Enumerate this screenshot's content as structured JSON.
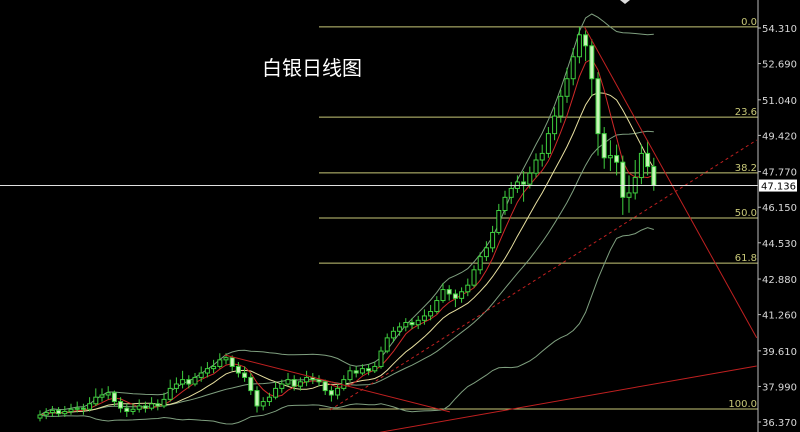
{
  "chart_data": {
    "type": "candlestick",
    "title": "白银日线图",
    "ylim": [
      36.37,
      54.31
    ],
    "y_ticks": [
      "54.310",
      "52.690",
      "51.040",
      "49.420",
      "47.770",
      "46.150",
      "44.530",
      "42.880",
      "41.260",
      "39.610",
      "37.990",
      "36.370"
    ],
    "current_price": "47.136",
    "grid": false,
    "colors": {
      "background": "#000000",
      "up": "#3fcf3f",
      "down_fill": "#c8f5b8",
      "ma_fast": "#d02828",
      "ma_mid": "#e8e0a0",
      "band": "#7f9f7f",
      "fib": "#c8c878",
      "trend": "#c02020",
      "price_line": "#e0e0e0"
    },
    "indicators": [
      "MA5",
      "Bollinger(20)"
    ],
    "ohlc": [
      [
        36.55,
        36.9,
        36.4,
        36.69
      ],
      [
        36.69,
        37.0,
        36.5,
        36.8
      ],
      [
        36.8,
        37.1,
        36.6,
        36.9
      ],
      [
        36.9,
        37.05,
        36.6,
        36.75
      ],
      [
        36.75,
        37.1,
        36.6,
        36.85
      ],
      [
        36.85,
        37.2,
        36.7,
        36.95
      ],
      [
        36.95,
        37.3,
        36.8,
        37.0
      ],
      [
        37.0,
        37.2,
        36.7,
        36.95
      ],
      [
        36.95,
        37.5,
        36.85,
        37.2
      ],
      [
        37.2,
        37.9,
        37.1,
        37.5
      ],
      [
        37.5,
        37.9,
        37.3,
        37.6
      ],
      [
        37.6,
        38.0,
        37.4,
        37.7
      ],
      [
        37.7,
        37.8,
        37.1,
        37.3
      ],
      [
        37.3,
        37.5,
        36.8,
        37.0
      ],
      [
        37.0,
        37.2,
        36.6,
        36.85
      ],
      [
        36.85,
        37.2,
        36.7,
        36.95
      ],
      [
        36.95,
        37.4,
        36.8,
        37.1
      ],
      [
        37.1,
        37.3,
        36.8,
        37.0
      ],
      [
        37.0,
        37.5,
        36.9,
        37.2
      ],
      [
        37.2,
        37.4,
        36.9,
        37.1
      ],
      [
        37.1,
        37.7,
        37.0,
        37.4
      ],
      [
        37.4,
        38.3,
        37.3,
        37.9
      ],
      [
        37.9,
        38.4,
        37.7,
        38.1
      ],
      [
        38.1,
        38.7,
        37.9,
        38.3
      ],
      [
        38.3,
        38.5,
        37.9,
        38.1
      ],
      [
        38.1,
        38.6,
        38.0,
        38.4
      ],
      [
        38.4,
        38.9,
        38.2,
        38.6
      ],
      [
        38.6,
        39.1,
        38.4,
        38.8
      ],
      [
        38.8,
        39.2,
        38.6,
        38.9
      ],
      [
        38.9,
        39.5,
        38.8,
        39.2
      ],
      [
        39.2,
        39.5,
        39.0,
        39.3
      ],
      [
        39.3,
        39.4,
        38.7,
        38.9
      ],
      [
        38.9,
        39.1,
        38.4,
        38.6
      ],
      [
        38.6,
        38.9,
        38.2,
        38.4
      ],
      [
        38.4,
        38.6,
        37.6,
        37.8
      ],
      [
        37.8,
        38.0,
        36.8,
        37.1
      ],
      [
        37.1,
        37.5,
        36.9,
        37.3
      ],
      [
        37.3,
        37.7,
        37.1,
        37.5
      ],
      [
        37.5,
        38.2,
        37.4,
        37.9
      ],
      [
        37.9,
        38.3,
        37.7,
        38.1
      ],
      [
        38.1,
        38.6,
        38.0,
        38.3
      ],
      [
        38.3,
        38.5,
        37.8,
        38.0
      ],
      [
        38.0,
        38.4,
        37.8,
        38.2
      ],
      [
        38.2,
        38.7,
        38.0,
        38.4
      ],
      [
        38.4,
        38.6,
        38.1,
        38.3
      ],
      [
        38.3,
        38.5,
        38.0,
        38.2
      ],
      [
        38.2,
        38.3,
        37.6,
        37.8
      ],
      [
        37.8,
        38.0,
        37.3,
        37.6
      ],
      [
        37.6,
        38.1,
        37.4,
        37.9
      ],
      [
        37.9,
        38.5,
        37.8,
        38.3
      ],
      [
        38.3,
        38.9,
        38.2,
        38.7
      ],
      [
        38.7,
        38.9,
        38.4,
        38.6
      ],
      [
        38.6,
        39.0,
        38.5,
        38.8
      ],
      [
        38.8,
        39.0,
        38.5,
        38.7
      ],
      [
        38.7,
        39.1,
        38.6,
        38.9
      ],
      [
        38.9,
        39.8,
        38.8,
        39.6
      ],
      [
        39.6,
        40.4,
        39.5,
        40.2
      ],
      [
        40.2,
        40.7,
        40.0,
        40.5
      ],
      [
        40.5,
        40.9,
        40.3,
        40.7
      ],
      [
        40.7,
        41.1,
        40.5,
        40.9
      ],
      [
        40.9,
        41.1,
        40.6,
        40.8
      ],
      [
        40.8,
        41.2,
        40.6,
        41.0
      ],
      [
        41.0,
        41.5,
        40.8,
        41.2
      ],
      [
        41.2,
        41.7,
        41.0,
        41.4
      ],
      [
        41.4,
        42.1,
        41.3,
        41.9
      ],
      [
        41.9,
        42.7,
        41.8,
        42.4
      ],
      [
        42.4,
        42.6,
        41.9,
        42.2
      ],
      [
        42.2,
        42.4,
        41.6,
        42.0
      ],
      [
        42.0,
        42.5,
        41.8,
        42.3
      ],
      [
        42.3,
        42.9,
        42.1,
        42.6
      ],
      [
        42.6,
        43.5,
        42.5,
        43.3
      ],
      [
        43.3,
        44.1,
        43.1,
        43.9
      ],
      [
        43.9,
        44.6,
        43.7,
        44.3
      ],
      [
        44.3,
        45.3,
        44.1,
        45.0
      ],
      [
        45.0,
        46.3,
        44.9,
        46.0
      ],
      [
        46.0,
        46.9,
        45.8,
        46.6
      ],
      [
        46.6,
        47.3,
        46.3,
        47.0
      ],
      [
        47.0,
        47.6,
        46.8,
        47.3
      ],
      [
        47.3,
        47.8,
        46.4,
        47.2
      ],
      [
        47.2,
        48.0,
        47.0,
        47.7
      ],
      [
        47.7,
        48.6,
        47.5,
        48.3
      ],
      [
        48.3,
        49.0,
        48.0,
        48.6
      ],
      [
        48.6,
        49.8,
        48.4,
        49.5
      ],
      [
        49.5,
        50.7,
        49.2,
        50.3
      ],
      [
        50.3,
        51.5,
        50.0,
        51.2
      ],
      [
        51.2,
        52.5,
        50.9,
        52.0
      ],
      [
        52.0,
        53.4,
        51.7,
        53.0
      ],
      [
        53.0,
        54.36,
        52.7,
        54.0
      ],
      [
        54.0,
        54.2,
        52.8,
        53.5
      ],
      [
        53.5,
        53.8,
        51.2,
        52.0
      ],
      [
        52.0,
        52.3,
        48.5,
        49.5
      ],
      [
        49.5,
        49.8,
        47.9,
        48.4
      ],
      [
        48.4,
        49.2,
        47.8,
        48.5
      ],
      [
        48.5,
        49.0,
        47.6,
        48.2
      ],
      [
        48.2,
        48.5,
        45.8,
        46.6
      ],
      [
        46.6,
        47.6,
        45.9,
        46.8
      ],
      [
        46.8,
        48.3,
        46.5,
        47.5
      ],
      [
        47.5,
        49.0,
        47.2,
        48.6
      ],
      [
        48.6,
        49.2,
        47.6,
        48.0
      ],
      [
        48.0,
        48.4,
        46.9,
        47.14
      ]
    ],
    "fibonacci": {
      "high": 54.36,
      "low": 36.96,
      "levels": [
        {
          "label": "0.0",
          "ratio": 0.0
        },
        {
          "label": "23.6",
          "ratio": 0.236
        },
        {
          "label": "38.2",
          "ratio": 0.382
        },
        {
          "label": "50.0",
          "ratio": 0.5
        },
        {
          "label": "61.8",
          "ratio": 0.618
        },
        {
          "label": "100.0",
          "ratio": 1.0
        }
      ],
      "start_index": 45
    },
    "trendlines": [
      {
        "from": [
          87.8,
          54.36
        ],
        "to": [
          115.6,
          40.2
        ],
        "style": "solid"
      },
      {
        "from": [
          46.8,
          36.92
        ],
        "to": [
          115.6,
          49.21
        ],
        "style": "dashed"
      },
      {
        "from": [
          29.8,
          39.42
        ],
        "to": [
          66.1,
          36.83
        ],
        "style": "solid"
      },
      {
        "from": [
          54.8,
          35.9
        ],
        "to": [
          115.6,
          38.92
        ],
        "style": "solid"
      }
    ]
  }
}
